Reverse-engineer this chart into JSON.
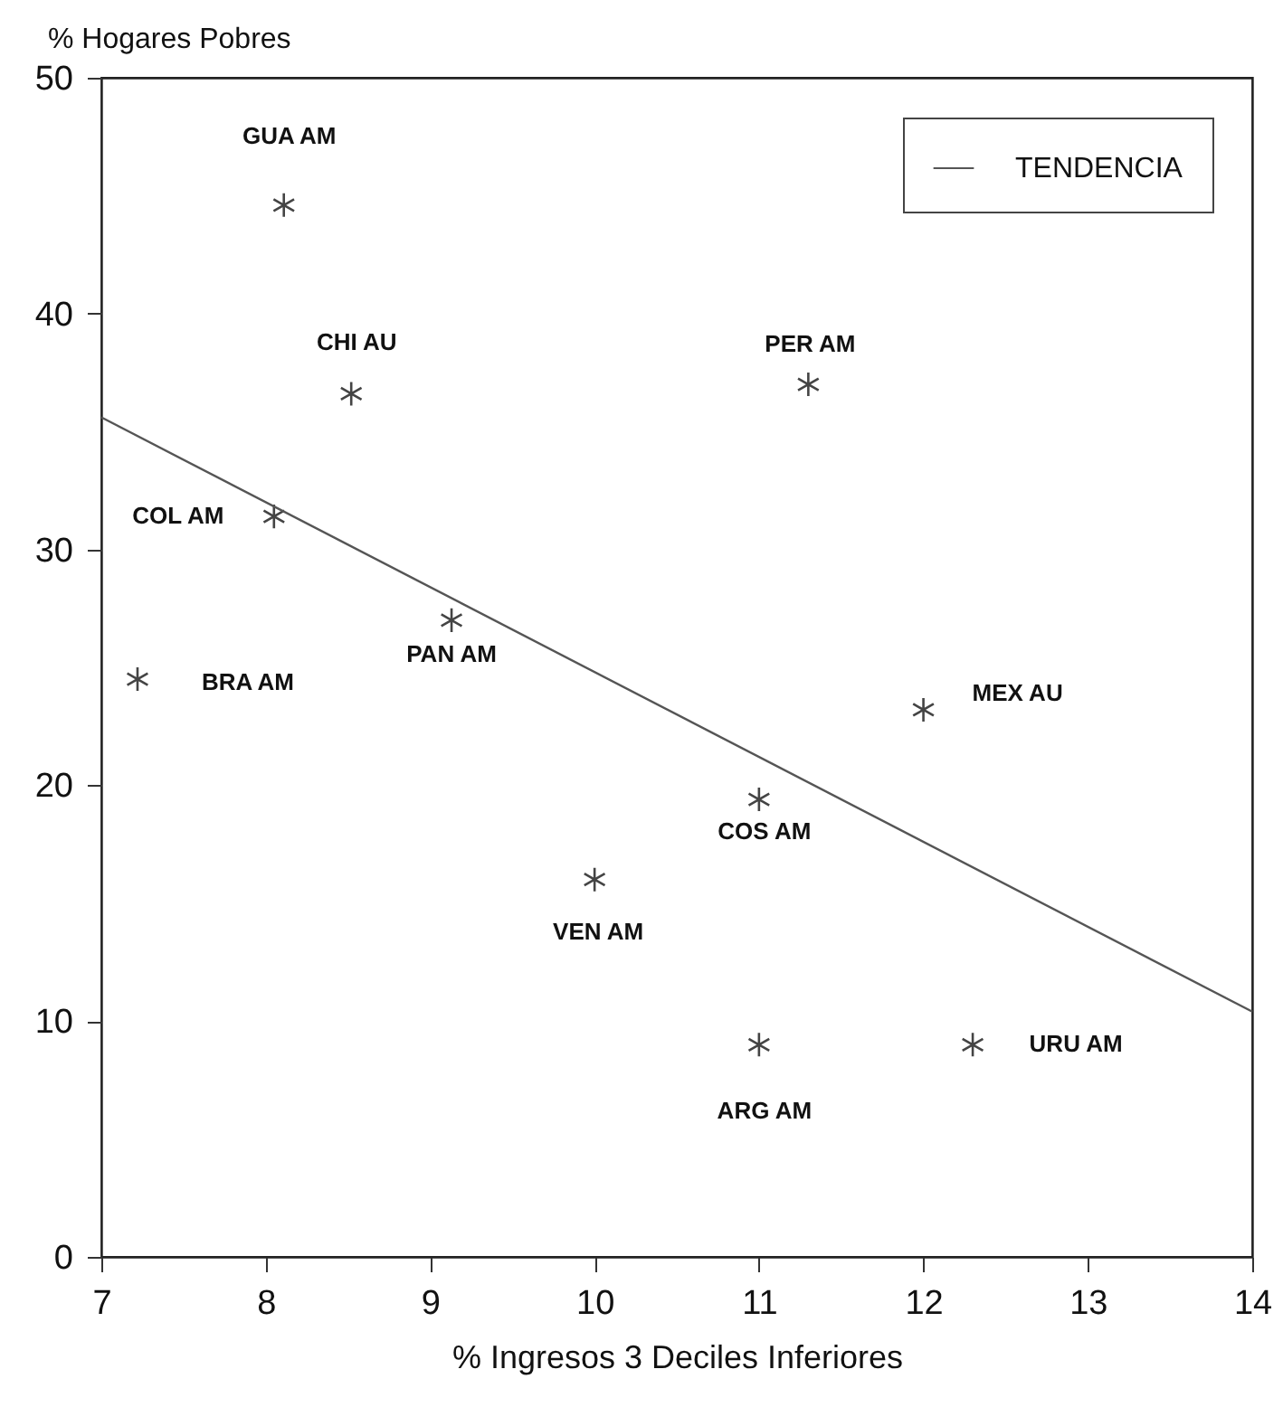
{
  "chart_data": {
    "type": "scatter",
    "xlabel": "% Ingresos 3 Deciles Inferiores",
    "ylabel": "% Hogares Pobres",
    "xlim": [
      7,
      14
    ],
    "xticks": [
      7,
      8,
      9,
      10,
      11,
      12,
      13,
      14
    ],
    "ylim": [
      0,
      50
    ],
    "yticks": [
      0,
      10,
      20,
      30,
      40,
      50
    ],
    "grid": false,
    "legend": "top right",
    "marker": "cross",
    "series": [
      {
        "color": "#444444",
        "x": [
          8.11,
          8.52,
          8.05,
          9.13,
          7.22,
          11.3,
          12.0,
          11.0,
          10.0,
          11.0,
          12.3
        ],
        "values": [
          44.6,
          36.6,
          31.4,
          27.0,
          24.5,
          37.0,
          23.2,
          19.4,
          16.0,
          9.0,
          9.0
        ]
      },
      {
        "type": "line",
        "name": "TENDENCIA",
        "color": "#555555",
        "line_style": "solid",
        "marker": "none",
        "x": [
          7,
          14
        ],
        "values": [
          35.6,
          10.4
        ]
      }
    ],
    "annotations": [
      {
        "text": "GUA AM",
        "x": 8.11,
        "y": 44.6
      },
      {
        "text": "CHI AU",
        "x": 8.52,
        "y": 36.6
      },
      {
        "text": "COL AM",
        "x": 8.05,
        "y": 31.4
      },
      {
        "text": "PAN AM",
        "x": 9.13,
        "y": 27.0
      },
      {
        "text": "BRA AM",
        "x": 7.22,
        "y": 24.5
      },
      {
        "text": "PER AM",
        "x": 11.3,
        "y": 37.0
      },
      {
        "text": "MEX AU",
        "x": 12.0,
        "y": 23.2
      },
      {
        "text": "COS AM",
        "x": 11.0,
        "y": 19.4
      },
      {
        "text": "VEN AM",
        "x": 10.0,
        "y": 16.0
      },
      {
        "text": "ARG AM",
        "x": 11.0,
        "y": 9.0
      },
      {
        "text": "URU AM",
        "x": 12.3,
        "y": 9.0
      }
    ]
  }
}
